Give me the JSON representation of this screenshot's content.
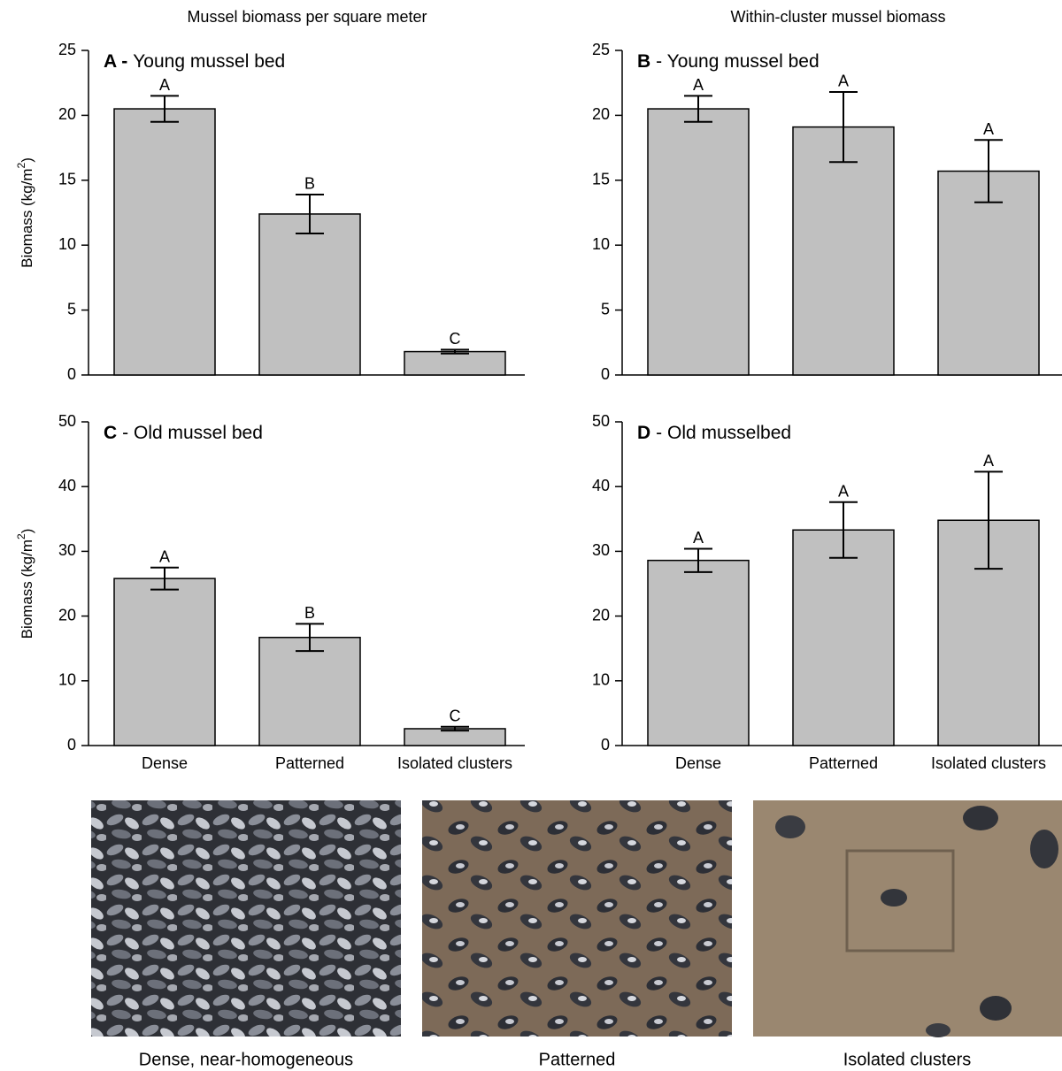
{
  "column_titles": [
    "Mussel biomass per square meter",
    "Within-cluster mussel biomass"
  ],
  "chart_data": [
    {
      "type": "bar",
      "label": "A -",
      "title": "Young mussel bed",
      "ylabel": "Biomass (kg/m",
      "ylabel_sup": "2",
      "ylabel_end": ")",
      "categories": [
        null,
        null,
        null
      ],
      "values": [
        20.5,
        12.4,
        1.8
      ],
      "errors": [
        1.0,
        1.5,
        0.15
      ],
      "annotations": [
        "A",
        "B",
        "C"
      ],
      "color": "#c0c0c0",
      "ylim": [
        0,
        25
      ],
      "yticks": [
        0,
        5,
        10,
        15,
        20,
        25
      ]
    },
    {
      "type": "bar",
      "label": "B",
      "title": "- Young mussel bed",
      "categories": [
        null,
        null,
        null
      ],
      "values": [
        20.5,
        19.1,
        15.7
      ],
      "errors": [
        1.0,
        2.7,
        2.4
      ],
      "annotations": [
        "A",
        "A",
        "A"
      ],
      "color": "#c0c0c0",
      "ylim": [
        0,
        25
      ],
      "yticks": [
        0,
        5,
        10,
        15,
        20,
        25
      ]
    },
    {
      "type": "bar",
      "label": "C",
      "title": "- Old mussel bed",
      "ylabel": "Biomass (kg/m",
      "ylabel_sup": "2",
      "ylabel_end": ")",
      "categories": [
        "Dense",
        "Patterned",
        "Isolated clusters"
      ],
      "values": [
        25.8,
        16.7,
        2.6
      ],
      "errors": [
        1.7,
        2.1,
        0.3
      ],
      "annotations": [
        "A",
        "B",
        "C"
      ],
      "color": "#c0c0c0",
      "ylim": [
        0,
        50
      ],
      "yticks": [
        0,
        10,
        20,
        30,
        40,
        50
      ]
    },
    {
      "type": "bar",
      "label": "D",
      "title": "- Old musselbed",
      "categories": [
        "Dense",
        "Patterned",
        "Isolated clusters"
      ],
      "values": [
        28.6,
        33.3,
        34.8
      ],
      "errors": [
        1.8,
        4.3,
        7.5
      ],
      "annotations": [
        "A",
        "A",
        "A"
      ],
      "color": "#c0c0c0",
      "ylim": [
        0,
        50
      ],
      "yticks": [
        0,
        10,
        20,
        30,
        40,
        50
      ]
    }
  ],
  "photo_captions": [
    "Dense, near-homogeneous",
    "Patterned",
    "Isolated clusters"
  ]
}
